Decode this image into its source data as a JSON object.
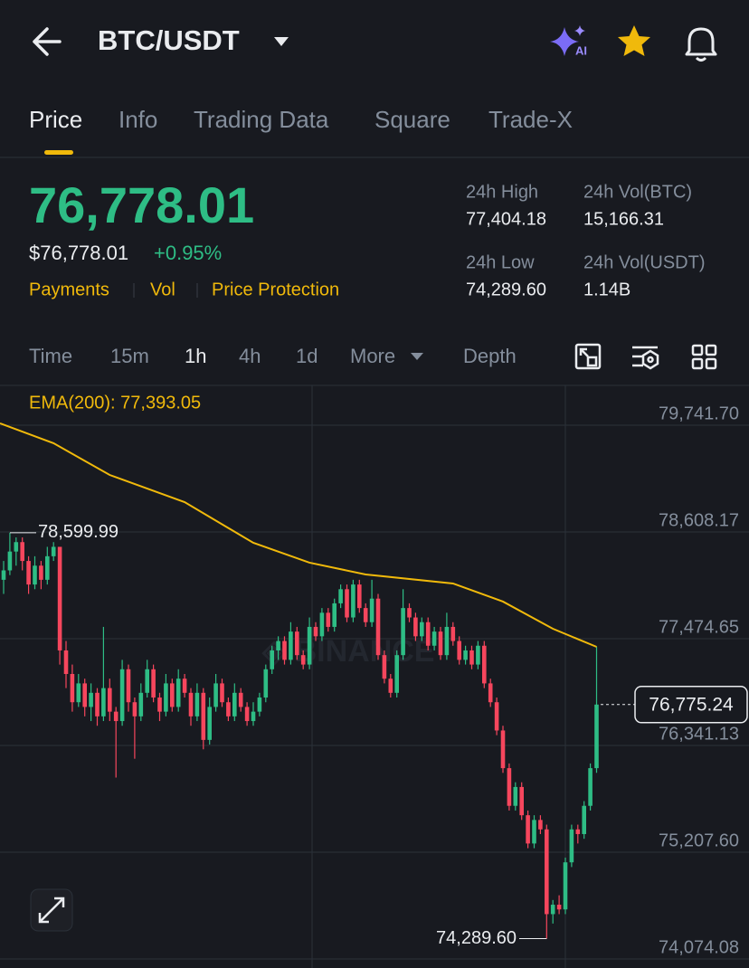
{
  "header": {
    "title": "BTC/USDT"
  },
  "tabs": [
    "Price",
    "Info",
    "Trading Data",
    "Square",
    "Trade-X"
  ],
  "ticker": {
    "last": "76,778.01",
    "usd": "$76,778.01",
    "change": "+0.95%",
    "links": [
      "Payments",
      "Vol",
      "Price Protection"
    ]
  },
  "stats": [
    {
      "label": "24h High",
      "value": "77,404.18"
    },
    {
      "label": "24h Vol(BTC)",
      "value": "15,166.31"
    },
    {
      "label": "24h Low",
      "value": "74,289.60"
    },
    {
      "label": "24h Vol(USDT)",
      "value": "1.14B"
    }
  ],
  "intervals": [
    "Time",
    "15m",
    "1h",
    "4h",
    "1d",
    "More",
    "Depth"
  ],
  "chart": {
    "type": "candlestick",
    "indicator": "EMA(200): 77,393.05",
    "ylim": [
      73978,
      80145
    ],
    "yticks": [
      {
        "value": 79741.7,
        "label": "79,741.70"
      },
      {
        "value": 78608.17,
        "label": "78,608.17"
      },
      {
        "value": 77474.65,
        "label": "77,474.65"
      },
      {
        "value": 76341.13,
        "label": "76,341.13"
      },
      {
        "value": 75207.6,
        "label": "75,207.60"
      },
      {
        "value": 74074.08,
        "label": "74,074.08"
      }
    ],
    "high_marker": {
      "value": 78599.99,
      "label": "78,599.99"
    },
    "low_marker": {
      "value": 74289.6,
      "label": "74,289.60"
    },
    "last_price": {
      "value": 76775.24,
      "label": "76,775.24"
    },
    "candles": [
      [
        78100,
        78300,
        77950,
        78200
      ],
      [
        78200,
        78599.99,
        78150,
        78400
      ],
      [
        78400,
        78550,
        78250,
        78500
      ],
      [
        78500,
        78550,
        78200,
        78300
      ],
      [
        78300,
        78350,
        77950,
        78050
      ],
      [
        78050,
        78350,
        78000,
        78250
      ],
      [
        78250,
        78300,
        78000,
        78100
      ],
      [
        78100,
        78450,
        78050,
        78350
      ],
      [
        78350,
        78500,
        78300,
        78450
      ],
      [
        78450,
        78450,
        77200,
        77350
      ],
      [
        77350,
        77450,
        76950,
        77100
      ],
      [
        77100,
        77200,
        76700,
        76800
      ],
      [
        76800,
        77100,
        76750,
        77000
      ],
      [
        77000,
        77050,
        76650,
        76750
      ],
      [
        76750,
        77000,
        76600,
        76900
      ],
      [
        76900,
        76950,
        76550,
        76650
      ],
      [
        76650,
        77600,
        76600,
        76950
      ],
      [
        76950,
        77050,
        76600,
        76700
      ],
      [
        76700,
        76750,
        76000,
        76600
      ],
      [
        76600,
        77250,
        76550,
        77150
      ],
      [
        77150,
        77200,
        76700,
        76800
      ],
      [
        76800,
        76850,
        76200,
        76650
      ],
      [
        76650,
        77000,
        76600,
        76900
      ],
      [
        76900,
        77250,
        76850,
        77150
      ],
      [
        77150,
        77200,
        76800,
        76850
      ],
      [
        76850,
        76900,
        76600,
        76700
      ],
      [
        76700,
        77100,
        76650,
        77000
      ],
      [
        77000,
        77050,
        76700,
        76750
      ],
      [
        76750,
        77150,
        76700,
        77050
      ],
      [
        77050,
        77100,
        76850,
        76900
      ],
      [
        76900,
        76950,
        76550,
        76650
      ],
      [
        76650,
        77000,
        76600,
        76900
      ],
      [
        76900,
        76950,
        76300,
        76400
      ],
      [
        76400,
        76850,
        76350,
        76750
      ],
      [
        76750,
        77100,
        76700,
        77000
      ],
      [
        77000,
        77050,
        76750,
        76800
      ],
      [
        76800,
        76850,
        76600,
        76650
      ],
      [
        76650,
        77000,
        76600,
        76900
      ],
      [
        76900,
        76950,
        76700,
        76750
      ],
      [
        76750,
        76800,
        76550,
        76600
      ],
      [
        76600,
        76800,
        76550,
        76700
      ],
      [
        76700,
        76900,
        76650,
        76850
      ],
      [
        76850,
        77200,
        76800,
        77150
      ],
      [
        77150,
        77400,
        77100,
        77350
      ],
      [
        77350,
        77500,
        77250,
        77450
      ],
      [
        77450,
        77500,
        77200,
        77250
      ],
      [
        77250,
        77650,
        77200,
        77550
      ],
      [
        77550,
        77600,
        77250,
        77300
      ],
      [
        77300,
        77350,
        77150,
        77200
      ],
      [
        77200,
        77700,
        77150,
        77600
      ],
      [
        77600,
        77650,
        77450,
        77500
      ],
      [
        77500,
        77800,
        77450,
        77750
      ],
      [
        77750,
        77800,
        77550,
        77600
      ],
      [
        77600,
        77900,
        77550,
        77850
      ],
      [
        77850,
        78050,
        77800,
        78000
      ],
      [
        78000,
        78050,
        77650,
        77700
      ],
      [
        77700,
        78100,
        77650,
        78050
      ],
      [
        78050,
        78100,
        77750,
        77800
      ],
      [
        77800,
        77850,
        77600,
        77650
      ],
      [
        77650,
        78100,
        77600,
        77900
      ],
      [
        77900,
        77950,
        77250,
        77300
      ],
      [
        77300,
        77350,
        77000,
        77050
      ],
      [
        77050,
        77100,
        76850,
        76900
      ],
      [
        76900,
        77350,
        76850,
        77300
      ],
      [
        77300,
        78000,
        77250,
        77800
      ],
      [
        77800,
        77850,
        77650,
        77700
      ],
      [
        77700,
        77750,
        77450,
        77500
      ],
      [
        77500,
        77700,
        77450,
        77650
      ],
      [
        77650,
        77700,
        77350,
        77400
      ],
      [
        77400,
        77600,
        77350,
        77550
      ],
      [
        77550,
        77600,
        77250,
        77300
      ],
      [
        77300,
        77750,
        77250,
        77600
      ],
      [
        77600,
        77650,
        77400,
        77450
      ],
      [
        77450,
        77500,
        77200,
        77250
      ],
      [
        77250,
        77400,
        77200,
        77350
      ],
      [
        77350,
        77400,
        77150,
        77200
      ],
      [
        77200,
        77450,
        77150,
        77400
      ],
      [
        77400,
        77450,
        76950,
        77000
      ],
      [
        77000,
        77050,
        76750,
        76800
      ],
      [
        76800,
        76850,
        76450,
        76500
      ],
      [
        76500,
        76550,
        76050,
        76100
      ],
      [
        76100,
        76150,
        75650,
        75700
      ],
      [
        75700,
        75950,
        75650,
        75900
      ],
      [
        75900,
        75950,
        75550,
        75600
      ],
      [
        75600,
        75650,
        75250,
        75300
      ],
      [
        75300,
        75600,
        75250,
        75550
      ],
      [
        75550,
        75600,
        75400,
        75450
      ],
      [
        75450,
        75500,
        74289.6,
        74550
      ],
      [
        74550,
        74700,
        74450,
        74650
      ],
      [
        74650,
        74750,
        74550,
        74600
      ],
      [
        74600,
        75150,
        74550,
        75100
      ],
      [
        75100,
        75500,
        75050,
        75450
      ],
      [
        75450,
        75500,
        75300,
        75400
      ],
      [
        75400,
        75750,
        75350,
        75700
      ],
      [
        75700,
        76150,
        75650,
        76100
      ],
      [
        76100,
        77390,
        76050,
        76775.24
      ]
    ],
    "ema": {
      "x": [
        0,
        8,
        17,
        29,
        40,
        49,
        58,
        72,
        80,
        88,
        95
      ],
      "values": [
        79761,
        79550,
        79213,
        78925,
        78493,
        78282,
        78157,
        78061,
        77869,
        77580,
        77388
      ]
    }
  }
}
